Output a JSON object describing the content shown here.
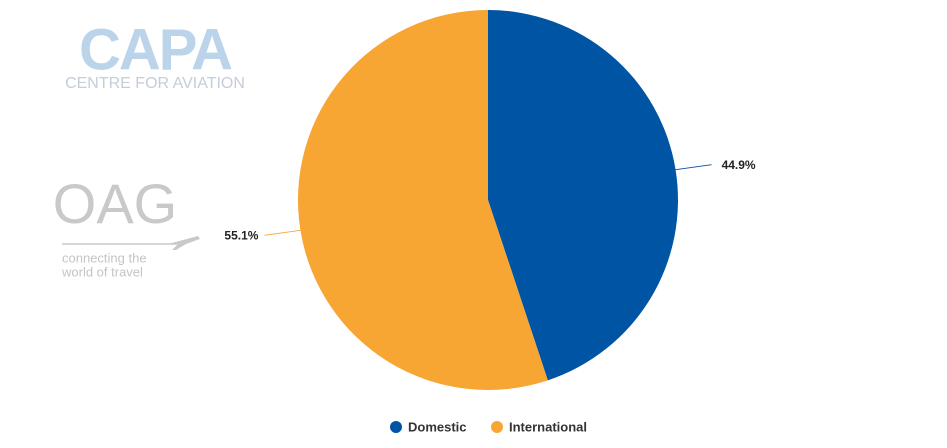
{
  "logos": {
    "capa": "CAPA",
    "capa_sub": "CENTRE FOR AVIATION",
    "oag": "OAG",
    "oag_tagline": [
      "connecting the",
      "world of travel"
    ]
  },
  "chart_data": {
    "type": "pie",
    "categories": [
      "Domestic",
      "International"
    ],
    "values": [
      44.9,
      55.1
    ],
    "value_labels": [
      "44.9%",
      "55.1%"
    ],
    "colors": [
      "#0054a4",
      "#f8a633"
    ]
  }
}
